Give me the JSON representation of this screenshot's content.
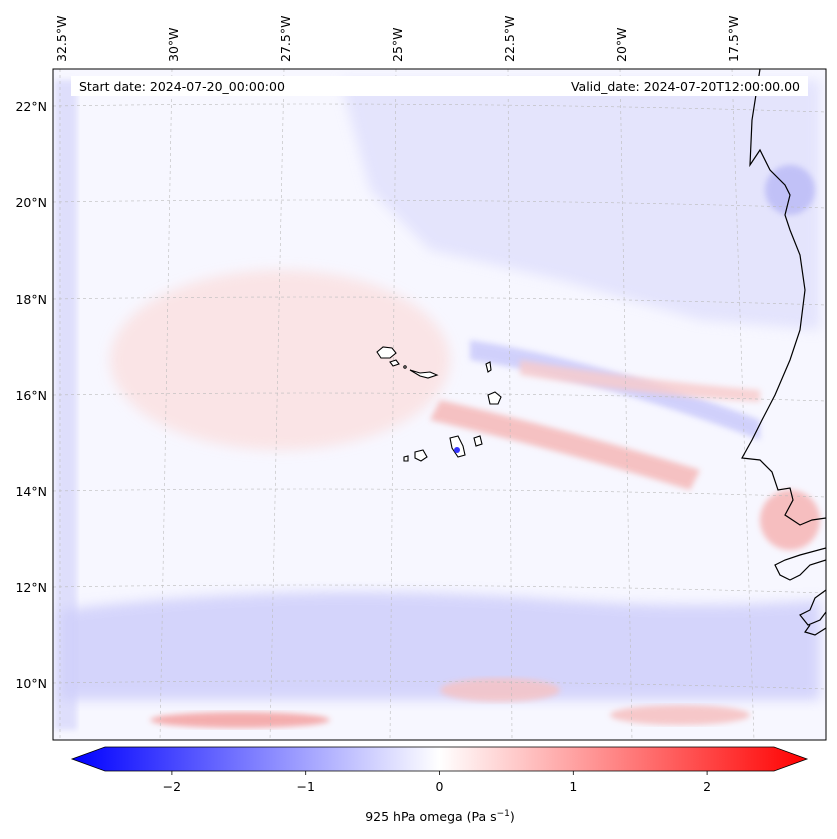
{
  "annotations": {
    "start": "Start date: 2024-07-20_00:00:00",
    "valid": "Valid_date: 2024-07-20T12:00:00.00"
  },
  "top_lon_labels": [
    "32.5°W",
    "30°W",
    "27.5°W",
    "25°W",
    "22.5°W",
    "20°W",
    "17.5°W"
  ],
  "lat_labels": [
    "22°N",
    "20°N",
    "18°N",
    "16°N",
    "14°N",
    "12°N",
    "10°N"
  ],
  "colorbar": {
    "label_main": "925 hPa omega (Pa s",
    "label_exp": "−1",
    "label_close": ")",
    "tick_labels": [
      "−2",
      "−1",
      "0",
      "1",
      "2"
    ],
    "ticks": [
      -2,
      -1,
      0,
      1,
      2
    ],
    "range": [
      -2.5,
      2.5
    ],
    "colors": {
      "neg": "#0000ff",
      "zero": "#ffffff",
      "pos": "#ff0000"
    }
  },
  "map": {
    "lat_range_deg_n": [
      8.9,
      22.8
    ],
    "lon_range_deg_w": [
      33.0,
      15.0
    ],
    "coastline_color": "#000000",
    "gridline_color": "#bbbbbb"
  }
}
